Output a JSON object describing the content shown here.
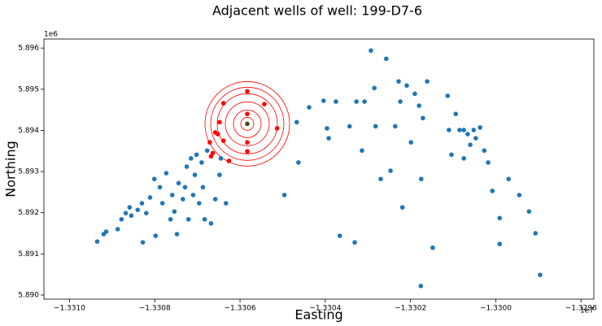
{
  "chart_data": {
    "type": "scatter",
    "title": "Adjacent wells of well:  199-D7-6",
    "xlabel": "Easting",
    "ylabel": "Northing",
    "x_offset_label": "1e7",
    "y_offset_label": "1e6",
    "xlim": [
      -13310600,
      -13297700
    ],
    "ylim": [
      5889900,
      5896220
    ],
    "xticks": [
      {
        "value": -13310000,
        "label": "−1.3310"
      },
      {
        "value": -13308000,
        "label": "−1.3308"
      },
      {
        "value": -13306000,
        "label": "−1.3306"
      },
      {
        "value": -13304000,
        "label": "−1.3304"
      },
      {
        "value": -13302000,
        "label": "−1.3302"
      },
      {
        "value": -13300000,
        "label": "−1.3300"
      },
      {
        "value": -13298000,
        "label": "−1.3298"
      }
    ],
    "yticks": [
      {
        "value": 5890000,
        "label": "5.890"
      },
      {
        "value": 5891000,
        "label": "5.891"
      },
      {
        "value": 5892000,
        "label": "5.892"
      },
      {
        "value": 5893000,
        "label": "5.893"
      },
      {
        "value": 5894000,
        "label": "5.894"
      },
      {
        "value": 5895000,
        "label": "5.895"
      },
      {
        "value": 5896000,
        "label": "5.896"
      }
    ],
    "series": [
      {
        "color": "#1f77b4",
        "x": [
          -13309350,
          -13309200,
          -13309140,
          -13308870,
          -13308780,
          -13308680,
          -13308590,
          -13308550,
          -13308400,
          -13308300,
          -13308280,
          -13308200,
          -13308110,
          -13308010,
          -13307980,
          -13307880,
          -13307820,
          -13307730,
          -13307630,
          -13307590,
          -13307540,
          -13307480,
          -13307440,
          -13307340,
          -13307290,
          -13307250,
          -13307210,
          -13307150,
          -13307100,
          -13307060,
          -13307020,
          -13306960,
          -13306900,
          -13306870,
          -13306830,
          -13306770,
          -13306680,
          -13306580,
          -13306480,
          -13306450,
          -13306330,
          -13304960,
          -13304670,
          -13304630,
          -13304380,
          -13304040,
          -13303960,
          -13303920,
          -13303750,
          -13303660,
          -13303430,
          -13303310,
          -13303270,
          -13303140,
          -13303080,
          -13302930,
          -13302850,
          -13302820,
          -13302700,
          -13302570,
          -13302470,
          -13302360,
          -13302280,
          -13302240,
          -13302190,
          -13302090,
          -13301990,
          -13301900,
          -13301800,
          -13301750,
          -13301710,
          -13301610,
          -13301480,
          -13301760,
          -13301130,
          -13301100,
          -13301040,
          -13300940,
          -13300850,
          -13300750,
          -13300660,
          -13300600,
          -13300520,
          -13300470,
          -13300370,
          -13300270,
          -13300180,
          -13300080,
          -13299910,
          -13299910,
          -13299700,
          -13299450,
          -13299220,
          -13299070,
          -13298960,
          -13300750
        ],
        "values": [
          5891300,
          5891480,
          5891540,
          5891600,
          5891840,
          5891990,
          5892130,
          5891930,
          5892070,
          5892230,
          5891280,
          5891990,
          5892370,
          5892820,
          5891440,
          5892620,
          5892230,
          5892960,
          5891840,
          5892430,
          5892030,
          5891480,
          5892720,
          5892330,
          5892620,
          5893120,
          5891840,
          5893320,
          5892430,
          5892920,
          5893410,
          5892230,
          5893220,
          5892620,
          5891840,
          5893510,
          5891740,
          5892330,
          5892920,
          5893320,
          5892230,
          5892430,
          5894200,
          5893220,
          5894560,
          5894720,
          5894050,
          5893810,
          5894700,
          5891440,
          5894100,
          5891280,
          5894700,
          5893510,
          5894700,
          5895940,
          5895030,
          5894100,
          5892820,
          5895740,
          5893020,
          5894100,
          5895190,
          5894700,
          5892130,
          5895090,
          5893710,
          5894890,
          5894600,
          5892820,
          5894300,
          5895190,
          5891150,
          5890220,
          5894840,
          5894010,
          5893410,
          5894400,
          5894010,
          5893320,
          5893910,
          5893650,
          5894010,
          5893810,
          5894070,
          5893510,
          5893220,
          5892530,
          5891870,
          5891240,
          5892820,
          5892430,
          5892030,
          5891500,
          5890490,
          5894010
        ]
      },
      {
        "color": "#ff0000",
        "x": [
          -13306390,
          -13306260,
          -13306640,
          -13306520,
          -13306480,
          -13306390,
          -13305830,
          -13305830,
          -13305830,
          -13305830,
          -13305430,
          -13305130,
          -13306710,
          -13306580,
          -13306680
        ],
        "values": [
          5893750,
          5893260,
          5893450,
          5893910,
          5894200,
          5894660,
          5894950,
          5894400,
          5893710,
          5893490,
          5894640,
          5894050,
          5893710,
          5893950,
          5893370
        ]
      },
      {
        "color": "#3d4a16",
        "x": [
          -13305830
        ],
        "values": [
          5894160
        ]
      }
    ]
  }
}
